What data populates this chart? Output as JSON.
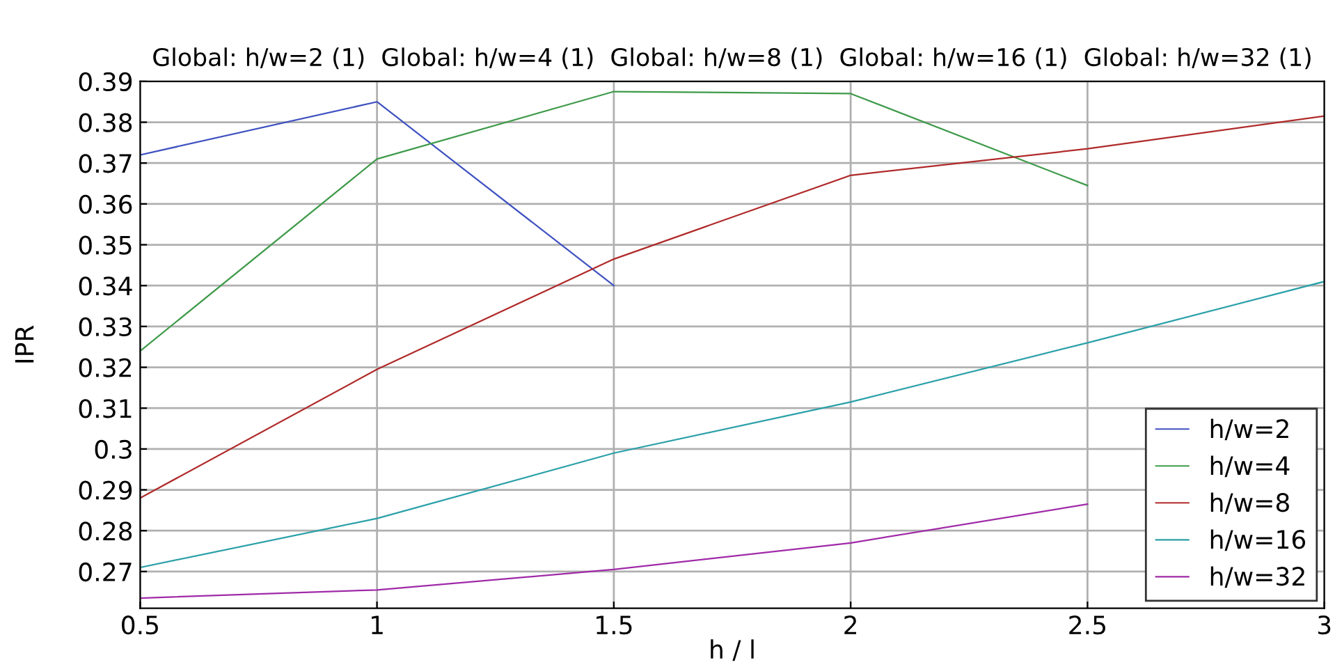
{
  "chart_data": {
    "type": "line",
    "title": "Global: h/w=2 (1)  Global: h/w=4 (1)  Global: h/w=8 (1)  Global: h/w=16 (1)  Global: h/w=32 (1)",
    "xlabel": "h / l",
    "ylabel": "IPR",
    "x": [
      0.5,
      1,
      1.5,
      2,
      2.5,
      3
    ],
    "series": [
      {
        "name": "h/w=2",
        "color": "#3f51c0",
        "values": [
          0.372,
          0.385,
          0.34,
          null,
          null,
          null
        ]
      },
      {
        "name": "h/w=4",
        "color": "#3f9a4a",
        "values": [
          0.324,
          0.371,
          0.3875,
          0.387,
          0.3645,
          null
        ]
      },
      {
        "name": "h/w=8",
        "color": "#b02a2a",
        "values": [
          0.288,
          0.3195,
          0.3465,
          0.367,
          0.3735,
          0.3815
        ]
      },
      {
        "name": "h/w=16",
        "color": "#2aa0a8",
        "values": [
          0.271,
          0.283,
          0.299,
          0.3115,
          0.326,
          0.341
        ]
      },
      {
        "name": "h/w=32",
        "color": "#a02aa8",
        "values": [
          0.2635,
          0.2655,
          0.2705,
          0.277,
          0.2865,
          null
        ]
      }
    ],
    "xlim": [
      0.5,
      3
    ],
    "xticks": [
      0.5,
      1,
      1.5,
      2,
      2.5,
      3
    ],
    "ylim": [
      0.261,
      0.39
    ],
    "yticks": [
      0.27,
      0.28,
      0.29,
      0.3,
      0.31,
      0.32,
      0.33,
      0.34,
      0.35,
      0.36,
      0.37,
      0.38,
      0.39
    ],
    "grid": true,
    "legend": "bottom right",
    "marker": "none",
    "line_style": "solid"
  }
}
